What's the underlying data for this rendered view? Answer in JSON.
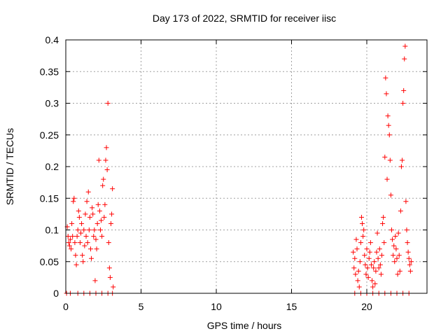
{
  "chart_data": {
    "type": "scatter",
    "title": "Day 173 of 2022, SRMTID for receiver iisc",
    "xlabel": "GPS time / hours",
    "ylabel": "SRMTID / TECUs",
    "xlim": [
      0,
      24
    ],
    "ylim": [
      0,
      0.4
    ],
    "xticks": [
      "0",
      "5",
      "10",
      "15",
      "20"
    ],
    "yticks": [
      "0",
      "0.05",
      "0.1",
      "0.15",
      "0.2",
      "0.25",
      "0.3",
      "0.35",
      "0.4"
    ],
    "grid": true,
    "legend": "none",
    "marker": "plus",
    "color": "#ff0000",
    "series": [
      {
        "values": [
          [
            0.05,
            0.0
          ],
          [
            0.1,
            0.105
          ],
          [
            0.15,
            0.09
          ],
          [
            0.2,
            0.08
          ],
          [
            0.25,
            0.075
          ],
          [
            0.3,
            0.085
          ],
          [
            0.35,
            0.07
          ],
          [
            0.4,
            0.11
          ],
          [
            0.45,
            0.09
          ],
          [
            0.5,
            0.145
          ],
          [
            0.55,
            0.15
          ],
          [
            0.6,
            0.08
          ],
          [
            0.65,
            0.06
          ],
          [
            0.7,
            0.045
          ],
          [
            0.75,
            0.09
          ],
          [
            0.8,
            0.1
          ],
          [
            0.85,
            0.13
          ],
          [
            0.9,
            0.12
          ],
          [
            0.95,
            0.08
          ],
          [
            1.0,
            0.095
          ],
          [
            1.05,
            0.11
          ],
          [
            1.1,
            0.06
          ],
          [
            1.15,
            0.05
          ],
          [
            1.2,
            0.1
          ],
          [
            1.25,
            0.075
          ],
          [
            1.3,
            0.125
          ],
          [
            1.35,
            0.09
          ],
          [
            1.4,
            0.145
          ],
          [
            1.45,
            0.08
          ],
          [
            1.5,
            0.16
          ],
          [
            1.55,
            0.1
          ],
          [
            1.6,
            0.12
          ],
          [
            1.65,
            0.07
          ],
          [
            1.7,
            0.055
          ],
          [
            1.75,
            0.135
          ],
          [
            1.8,
            0.125
          ],
          [
            1.85,
            0.09
          ],
          [
            1.9,
            0.1
          ],
          [
            1.95,
            0.02
          ],
          [
            2.0,
            0.085
          ],
          [
            2.05,
            0.07
          ],
          [
            2.1,
            0.11
          ],
          [
            2.15,
            0.14
          ],
          [
            2.2,
            0.21
          ],
          [
            2.25,
            0.13
          ],
          [
            2.3,
            0.1
          ],
          [
            2.35,
            0.115
          ],
          [
            2.4,
            0.09
          ],
          [
            2.45,
            0.17
          ],
          [
            2.5,
            0.18
          ],
          [
            2.55,
            0.12
          ],
          [
            2.6,
            0.14
          ],
          [
            2.65,
            0.21
          ],
          [
            2.7,
            0.23
          ],
          [
            2.75,
            0.195
          ],
          [
            2.8,
            0.3
          ],
          [
            2.85,
            0.08
          ],
          [
            2.9,
            0.04
          ],
          [
            2.95,
            0.025
          ],
          [
            3.0,
            0.11
          ],
          [
            3.05,
            0.125
          ],
          [
            3.1,
            0.165
          ],
          [
            3.15,
            0.01
          ],
          [
            0.3,
            0.0
          ],
          [
            0.8,
            0.0
          ],
          [
            1.2,
            0.0
          ],
          [
            1.6,
            0.0
          ],
          [
            2.0,
            0.0
          ],
          [
            2.4,
            0.0
          ],
          [
            2.8,
            0.0
          ],
          [
            3.1,
            0.0
          ],
          [
            19.1,
            0.065
          ],
          [
            19.15,
            0.04
          ],
          [
            19.2,
            0.055
          ],
          [
            19.25,
            0.03
          ],
          [
            19.3,
            0.085
          ],
          [
            19.35,
            0.07
          ],
          [
            19.4,
            0.02
          ],
          [
            19.45,
            0.035
          ],
          [
            19.5,
            0.01
          ],
          [
            19.55,
            0.05
          ],
          [
            19.6,
            0.08
          ],
          [
            19.65,
            0.12
          ],
          [
            19.7,
            0.11
          ],
          [
            19.75,
            0.09
          ],
          [
            19.8,
            0.1
          ],
          [
            19.85,
            0.06
          ],
          [
            19.9,
            0.045
          ],
          [
            19.95,
            0.03
          ],
          [
            20.0,
            0.07
          ],
          [
            20.05,
            0.04
          ],
          [
            20.1,
            0.025
          ],
          [
            20.15,
            0.055
          ],
          [
            20.2,
            0.065
          ],
          [
            20.25,
            0.08
          ],
          [
            20.3,
            0.045
          ],
          [
            20.35,
            0.02
          ],
          [
            20.4,
            0.01
          ],
          [
            20.45,
            0.04
          ],
          [
            20.5,
            0.05
          ],
          [
            20.55,
            0.015
          ],
          [
            20.6,
            0.035
          ],
          [
            20.65,
            0.065
          ],
          [
            20.7,
            0.095
          ],
          [
            20.75,
            0.055
          ],
          [
            20.8,
            0.04
          ],
          [
            20.85,
            0.07
          ],
          [
            20.9,
            0.045
          ],
          [
            20.95,
            0.03
          ],
          [
            21.0,
            0.06
          ],
          [
            21.05,
            0.11
          ],
          [
            21.1,
            0.12
          ],
          [
            21.15,
            0.08
          ],
          [
            21.2,
            0.215
          ],
          [
            21.25,
            0.34
          ],
          [
            21.3,
            0.315
          ],
          [
            21.35,
            0.18
          ],
          [
            21.4,
            0.28
          ],
          [
            21.45,
            0.265
          ],
          [
            21.5,
            0.25
          ],
          [
            21.55,
            0.21
          ],
          [
            21.6,
            0.155
          ],
          [
            21.65,
            0.1
          ],
          [
            21.7,
            0.085
          ],
          [
            21.75,
            0.06
          ],
          [
            21.8,
            0.075
          ],
          [
            21.85,
            0.05
          ],
          [
            21.9,
            0.09
          ],
          [
            21.95,
            0.07
          ],
          [
            22.0,
            0.055
          ],
          [
            22.05,
            0.03
          ],
          [
            22.1,
            0.095
          ],
          [
            22.15,
            0.06
          ],
          [
            22.2,
            0.035
          ],
          [
            22.25,
            0.13
          ],
          [
            22.3,
            0.2
          ],
          [
            22.35,
            0.21
          ],
          [
            22.4,
            0.3
          ],
          [
            22.45,
            0.32
          ],
          [
            22.5,
            0.37
          ],
          [
            22.55,
            0.39
          ],
          [
            22.6,
            0.145
          ],
          [
            22.65,
            0.1
          ],
          [
            22.7,
            0.08
          ],
          [
            22.75,
            0.065
          ],
          [
            22.8,
            0.055
          ],
          [
            22.85,
            0.045
          ],
          [
            22.9,
            0.035
          ],
          [
            22.95,
            0.05
          ],
          [
            19.2,
            0.0
          ],
          [
            19.6,
            0.0
          ],
          [
            20.0,
            0.0
          ],
          [
            20.4,
            0.0
          ],
          [
            20.8,
            0.0
          ],
          [
            21.2,
            0.0
          ],
          [
            21.6,
            0.0
          ],
          [
            22.0,
            0.0
          ],
          [
            22.4,
            0.0
          ],
          [
            22.8,
            0.0
          ]
        ]
      }
    ]
  }
}
